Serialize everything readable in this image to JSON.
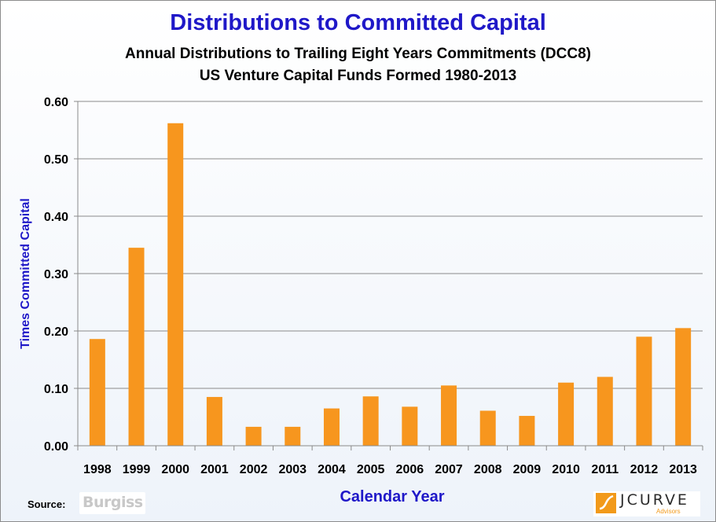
{
  "chart_data": {
    "type": "bar",
    "title": "Distributions to Committed Capital",
    "subtitle_lines": [
      "Annual Distributions to Trailing Eight Years Commitments (DCC8)",
      "US Venture Capital Funds Formed 1980-2013"
    ],
    "xlabel": "Calendar Year",
    "ylabel": "Times Committed Capital",
    "categories": [
      "1998",
      "1999",
      "2000",
      "2001",
      "2002",
      "2003",
      "2004",
      "2005",
      "2006",
      "2007",
      "2008",
      "2009",
      "2010",
      "2011",
      "2012",
      "2013"
    ],
    "values": [
      0.186,
      0.345,
      0.562,
      0.085,
      0.033,
      0.033,
      0.065,
      0.086,
      0.068,
      0.105,
      0.061,
      0.052,
      0.11,
      0.12,
      0.19,
      0.205
    ],
    "ylim": [
      0,
      0.6
    ],
    "yticks": [
      "0.00",
      "0.10",
      "0.20",
      "0.30",
      "0.40",
      "0.50",
      "0.60"
    ],
    "grid": "horizontal",
    "bar_color": "#f7961e",
    "title_color": "#1f18c8",
    "label_color": "#1f18c8"
  },
  "footer": {
    "source_label": "Source:",
    "source_logo": "Burgiss",
    "brand_logo": "JCURVE",
    "brand_tagline": "Advisors"
  }
}
